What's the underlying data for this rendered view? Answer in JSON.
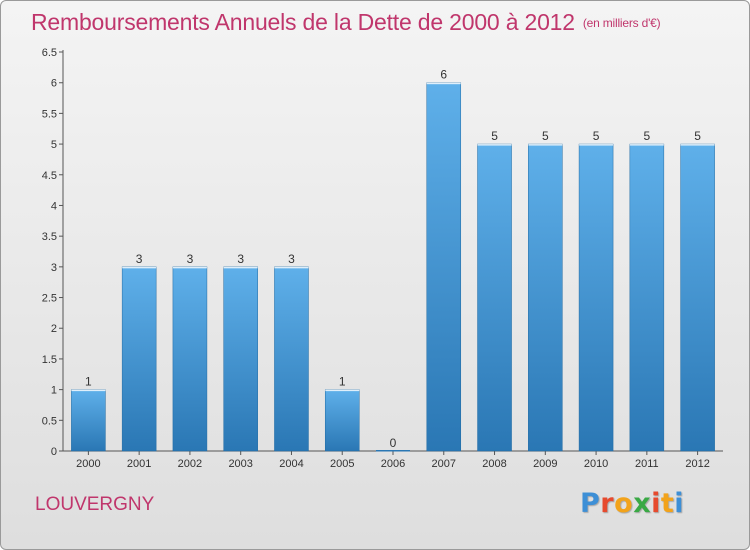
{
  "title": "Remboursements Annuels de la Dette de 2000 à 2012",
  "subtitle": "(en milliers d'€)",
  "location": "LOUVERGNY",
  "logo": {
    "letters": [
      "P",
      "r",
      "o",
      "x",
      "i",
      "t",
      "i"
    ],
    "colors": [
      "#3d8fd6",
      "#e64a2e",
      "#f2a31b",
      "#3aa945",
      "#e64a2e",
      "#f2a31b",
      "#3d8fd6"
    ]
  },
  "colors": {
    "title": "#c0366c",
    "bar_top": "#5fb0ea",
    "bar_bottom": "#2a77b4"
  },
  "chart_data": {
    "type": "bar",
    "title": "Remboursements Annuels de la Dette de 2000 à 2012",
    "subtitle": "(en milliers d'€)",
    "categories": [
      "2000",
      "2001",
      "2002",
      "2003",
      "2004",
      "2005",
      "2006",
      "2007",
      "2008",
      "2009",
      "2010",
      "2011",
      "2012"
    ],
    "values": [
      1,
      3,
      3,
      3,
      3,
      1,
      0,
      6,
      5,
      5,
      5,
      5,
      5
    ],
    "data_labels": [
      "1",
      "3",
      "3",
      "3",
      "3",
      "1",
      "0",
      "6",
      "5",
      "5",
      "5",
      "5",
      "5"
    ],
    "y_ticks": [
      "0",
      "0.5",
      "1",
      "1.5",
      "2",
      "2.5",
      "3",
      "3.5",
      "4",
      "4.5",
      "5",
      "5.5",
      "6",
      "6.5"
    ],
    "ylim": [
      0,
      6.5
    ],
    "grid": false,
    "xlabel": "",
    "ylabel": ""
  }
}
